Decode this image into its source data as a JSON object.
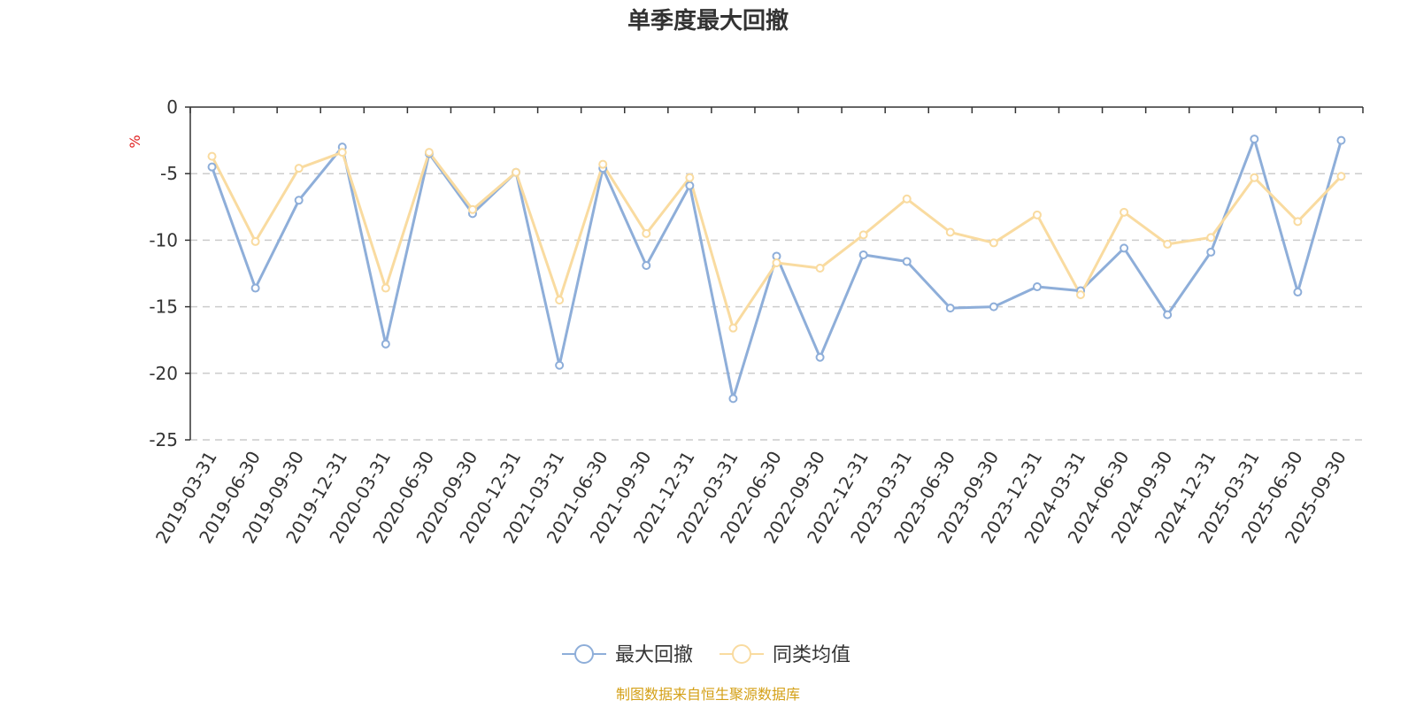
{
  "chart_data": {
    "type": "line",
    "title": "单季度最大回撤",
    "ylabel": "%",
    "ylim": [
      -25,
      0
    ],
    "yticks": [
      0,
      -5,
      -10,
      -15,
      -20,
      -25
    ],
    "grid": true,
    "legend_position": "bottom",
    "categories": [
      "2019-03-31",
      "2019-06-30",
      "2019-09-30",
      "2019-12-31",
      "2020-03-31",
      "2020-06-30",
      "2020-09-30",
      "2020-12-31",
      "2021-03-31",
      "2021-06-30",
      "2021-09-30",
      "2021-12-31",
      "2022-03-31",
      "2022-06-30",
      "2022-09-30",
      "2022-12-31",
      "2023-03-31",
      "2023-06-30",
      "2023-09-30",
      "2023-12-31",
      "2024-03-31",
      "2024-06-30",
      "2024-09-30",
      "2024-12-31",
      "2025-03-31",
      "2025-06-30",
      "2025-09-30"
    ],
    "series": [
      {
        "name": "最大回撤",
        "color": "#8eaed9",
        "values": [
          -4.5,
          -13.6,
          -7.0,
          -3.0,
          -17.8,
          -3.5,
          -8.0,
          -4.9,
          -19.4,
          -4.6,
          -11.9,
          -5.9,
          -21.9,
          -11.2,
          -18.8,
          -11.1,
          -11.6,
          -15.1,
          -15.0,
          -13.5,
          -13.8,
          -10.6,
          -15.6,
          -10.9,
          -2.4,
          -13.9,
          -2.5
        ]
      },
      {
        "name": "同类均值",
        "color": "#f9dba0",
        "values": [
          -3.7,
          -10.1,
          -4.6,
          -3.4,
          -13.6,
          -3.4,
          -7.7,
          -4.9,
          -14.5,
          -4.3,
          -9.5,
          -5.3,
          -16.6,
          -11.7,
          -12.1,
          -9.6,
          -6.9,
          -9.4,
          -10.2,
          -8.1,
          -14.1,
          -7.9,
          -10.3,
          -9.8,
          -5.3,
          -8.6,
          -5.2
        ]
      }
    ],
    "footer": "制图数据来自恒生聚源数据库"
  }
}
